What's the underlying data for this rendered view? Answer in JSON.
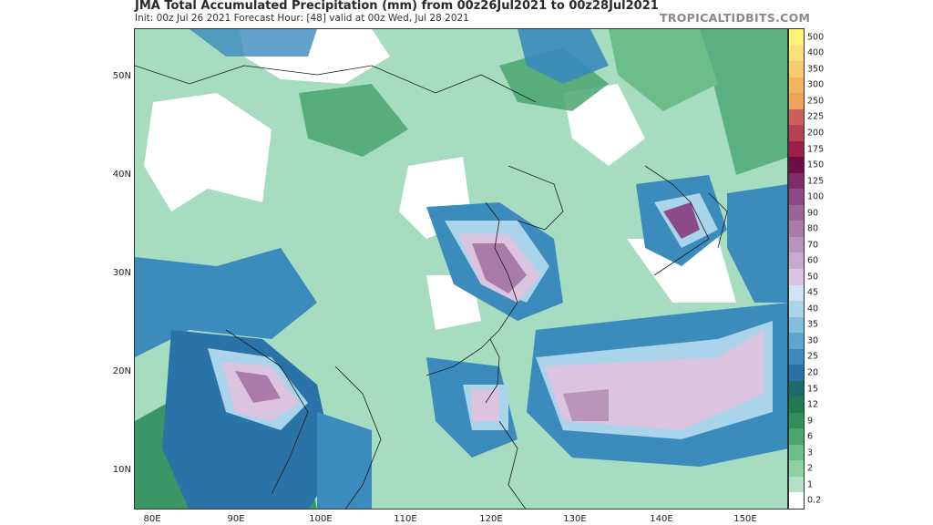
{
  "header": {
    "title": "JMA Total Accumulated Precipitation (mm) from 00z26Jul2021 to 00z28Jul2021",
    "subtitle": "Init: 00z Jul 26 2021   Forecast Hour: [48]   valid at 00z Wed, Jul 28 2021",
    "brand": "TROPICALTIDBITS.COM"
  },
  "map": {
    "lat_labels": [
      "50N",
      "40N",
      "30N",
      "20N",
      "10N"
    ],
    "lon_labels": [
      "80E",
      "90E",
      "100E",
      "110E",
      "120E",
      "130E",
      "140E",
      "150E"
    ]
  },
  "colorbar": {
    "unit": "mm",
    "levels": [
      {
        "label": "500",
        "color": "#fff27a"
      },
      {
        "label": "400",
        "color": "#fbe07a"
      },
      {
        "label": "350",
        "color": "#f7cc6e"
      },
      {
        "label": "300",
        "color": "#f3b461"
      },
      {
        "label": "250",
        "color": "#eea35a"
      },
      {
        "label": "225",
        "color": "#c9605c"
      },
      {
        "label": "200",
        "color": "#b24352"
      },
      {
        "label": "175",
        "color": "#9e1f49"
      },
      {
        "label": "150",
        "color": "#6e0d46"
      },
      {
        "label": "125",
        "color": "#7f2b6c"
      },
      {
        "label": "100",
        "color": "#8d4a88"
      },
      {
        "label": "90",
        "color": "#9a649a"
      },
      {
        "label": "80",
        "color": "#a87ba9"
      },
      {
        "label": "70",
        "color": "#b794b8"
      },
      {
        "label": "60",
        "color": "#c8abcb"
      },
      {
        "label": "50",
        "color": "#dcc4e0"
      },
      {
        "label": "45",
        "color": "#cfe3f0"
      },
      {
        "label": "40",
        "color": "#a9d4ea"
      },
      {
        "label": "35",
        "color": "#83bedf"
      },
      {
        "label": "30",
        "color": "#5ea6d0"
      },
      {
        "label": "25",
        "color": "#3b8bbd"
      },
      {
        "label": "20",
        "color": "#2a73a8"
      },
      {
        "label": "15",
        "color": "#1d6b6f"
      },
      {
        "label": "12",
        "color": "#1f7a4d"
      },
      {
        "label": "9",
        "color": "#2f8e5a"
      },
      {
        "label": "6",
        "color": "#49a66f"
      },
      {
        "label": "3",
        "color": "#6bbe88"
      },
      {
        "label": "2",
        "color": "#8dd2a3"
      },
      {
        "label": "1",
        "color": "#b2e2c2"
      },
      {
        "label": "0.2",
        "color": "#ffffff"
      }
    ]
  }
}
